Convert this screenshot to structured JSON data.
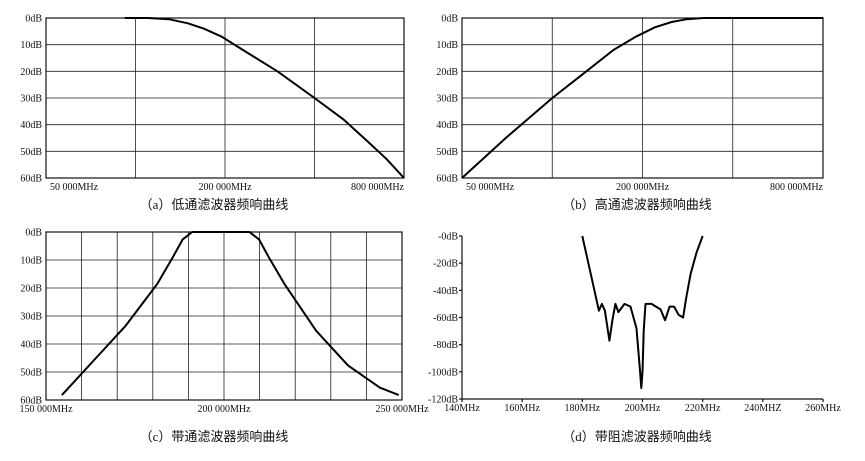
{
  "chart_data": [
    {
      "type": "line",
      "caption": "（a）低通滤波器频响曲线",
      "ylabels": [
        "0dB",
        "10dB",
        "20dB",
        "30dB",
        "40dB",
        "50dB",
        "60dB"
      ],
      "ylim": [
        -60,
        0
      ],
      "xlabels": [
        "50 000MHz",
        "200 000MHz",
        "800 000MHz"
      ],
      "x_scale": "log",
      "xlim": [
        50000,
        800000
      ],
      "grid_cols": 4,
      "grid": true,
      "series": [
        {
          "x": [
            92000,
            110000,
            130000,
            150000,
            170000,
            195000,
            230000,
            300000,
            400000,
            500000,
            600000,
            700000,
            800000
          ],
          "y": [
            0,
            0,
            -0.5,
            -2,
            -4,
            -7,
            -12,
            -20,
            -30,
            -38,
            -46,
            -53,
            -60
          ]
        }
      ]
    },
    {
      "type": "line",
      "caption": "（b）高通滤波器频响曲线",
      "ylabels": [
        "0dB",
        "10dB",
        "20dB",
        "30dB",
        "40dB",
        "50dB",
        "60dB"
      ],
      "ylim": [
        -60,
        0
      ],
      "xlabels": [
        "50 000MHz",
        "200 000MHz",
        "800 000MHz"
      ],
      "x_scale": "log",
      "xlim": [
        50000,
        800000
      ],
      "grid_cols": 4,
      "grid": true,
      "series": [
        {
          "x": [
            50000,
            70000,
            100000,
            130000,
            160000,
            190000,
            220000,
            250000,
            280000,
            320000,
            400000,
            800000
          ],
          "y": [
            -60,
            -45,
            -30,
            -20,
            -12,
            -7,
            -3.5,
            -1.5,
            -0.5,
            0,
            0,
            0
          ]
        }
      ]
    },
    {
      "type": "line",
      "caption": "（c）带通滤波器频响曲线",
      "ylabels": [
        "0dB",
        "10dB",
        "20dB",
        "30dB",
        "40dB",
        "50dB",
        "60dB"
      ],
      "ylim": [
        -68,
        0
      ],
      "xlabels": [
        "150 000MHz",
        "200 000MHz",
        "250 000MHz"
      ],
      "x_scale": "linear",
      "xlim": [
        145000,
        257000
      ],
      "grid_cols": 10,
      "grid": true,
      "series": [
        {
          "x": [
            150000,
            160000,
            170000,
            180000,
            185000,
            188000,
            191000,
            192000,
            208000,
            209000,
            212000,
            215000,
            220000,
            230000,
            240000,
            250000,
            256000
          ],
          "y": [
            -66,
            -52,
            -38,
            -21,
            -10,
            -3,
            0,
            0,
            0,
            0,
            -3,
            -10,
            -21,
            -40,
            -54,
            -63,
            -66
          ]
        }
      ]
    },
    {
      "type": "line",
      "caption": "（d）带阻滤波器频响曲线",
      "ylabels": [
        "-0dB",
        "-20dB",
        "-40dB",
        "-60dB",
        "-80dB",
        "-100dB",
        "-120dB"
      ],
      "ylim": [
        -120,
        0
      ],
      "xlabels": [
        "140MHz",
        "160MHz",
        "180MHz",
        "200MHz",
        "220MHz",
        "240MHZ",
        "260MHz"
      ],
      "x_scale": "linear",
      "xlim": [
        140,
        260
      ],
      "grid_cols": 6,
      "grid": false,
      "series": [
        {
          "x": [
            180,
            183,
            185.5,
            186.5,
            187.5,
            189,
            190,
            191,
            192,
            194,
            196,
            198,
            199.2,
            199.6,
            200,
            200.4,
            201,
            203,
            206,
            207.5,
            209,
            210.5,
            212,
            213.5,
            214.5,
            216,
            218,
            220
          ],
          "y": [
            0,
            -30,
            -55,
            -50,
            -55,
            -77,
            -62,
            -50,
            -56,
            -50,
            -52,
            -68,
            -100,
            -112,
            -100,
            -70,
            -50,
            -50,
            -54,
            -62,
            -52,
            -52,
            -58,
            -60,
            -46,
            -28,
            -12,
            0
          ]
        }
      ]
    }
  ]
}
